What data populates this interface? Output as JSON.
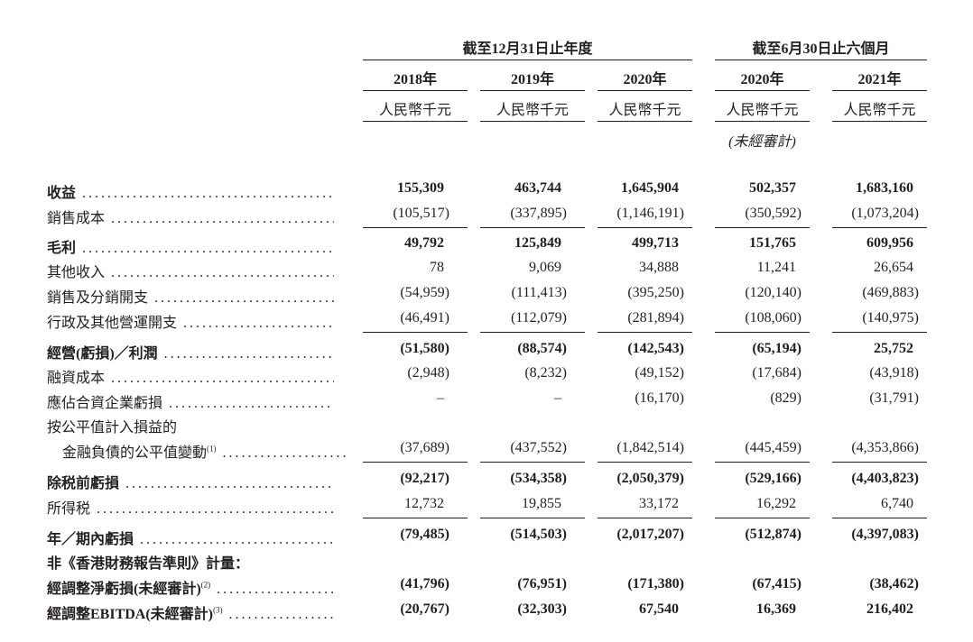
{
  "header": {
    "group_year": "截至12月31日止年度",
    "group_half": "截至6月30日止六個月",
    "columns": [
      {
        "year": "2018年",
        "unit": "人民幣千元"
      },
      {
        "year": "2019年",
        "unit": "人民幣千元"
      },
      {
        "year": "2020年",
        "unit": "人民幣千元"
      },
      {
        "year": "2020年",
        "unit": "人民幣千元",
        "note": "(未經審計)"
      },
      {
        "year": "2021年",
        "unit": "人民幣千元"
      }
    ]
  },
  "rows": [
    {
      "label": "收益",
      "bold": true,
      "values": [
        "155,309",
        "463,744",
        "1,645,904",
        "502,357",
        "1,683,160"
      ]
    },
    {
      "label": "銷售成本",
      "bold": false,
      "values": [
        "(105,517)",
        "(337,895)",
        "(1,146,191)",
        "(350,592)",
        "(1,073,204)"
      ],
      "rule_after": true
    },
    {
      "label": "毛利",
      "bold": true,
      "values": [
        "49,792",
        "125,849",
        "499,713",
        "151,765",
        "609,956"
      ]
    },
    {
      "label": "其他收入",
      "bold": false,
      "values": [
        "78",
        "9,069",
        "34,888",
        "11,241",
        "26,654"
      ]
    },
    {
      "label": "銷售及分銷開支",
      "bold": false,
      "values": [
        "(54,959)",
        "(111,413)",
        "(395,250)",
        "(120,140)",
        "(469,883)"
      ]
    },
    {
      "label": "行政及其他營運開支",
      "bold": false,
      "values": [
        "(46,491)",
        "(112,079)",
        "(281,894)",
        "(108,060)",
        "(140,975)"
      ],
      "rule_after": true
    },
    {
      "label": "經營(虧損)／利潤",
      "bold": true,
      "values": [
        "(51,580)",
        "(88,574)",
        "(142,543)",
        "(65,194)",
        "25,752"
      ]
    },
    {
      "label": "融資成本",
      "bold": false,
      "values": [
        "(2,948)",
        "(8,232)",
        "(49,152)",
        "(17,684)",
        "(43,918)"
      ]
    },
    {
      "label": "應佔合資企業虧損",
      "bold": false,
      "values": [
        "–",
        "–",
        "(16,170)",
        "(829)",
        "(31,791)"
      ]
    },
    {
      "label": "按公平值計入損益的",
      "bold": false,
      "nodots": true,
      "values": []
    },
    {
      "label": "金融負債的公平值變動",
      "sup": "(1)",
      "indent": true,
      "bold": false,
      "values": [
        "(37,689)",
        "(437,552)",
        "(1,842,514)",
        "(445,459)",
        "(4,353,866)"
      ],
      "rule_after": true
    },
    {
      "label": "除税前虧損",
      "bold": true,
      "values": [
        "(92,217)",
        "(534,358)",
        "(2,050,379)",
        "(529,166)",
        "(4,403,823)"
      ]
    },
    {
      "label": "所得税",
      "bold": false,
      "values": [
        "12,732",
        "19,855",
        "33,172",
        "16,292",
        "6,740"
      ],
      "rule_after": true
    },
    {
      "label": "年／期內虧損",
      "bold": true,
      "values": [
        "(79,485)",
        "(514,503)",
        "(2,017,207)",
        "(512,874)",
        "(4,397,083)"
      ]
    },
    {
      "label": "非《香港財務報告準則》計量：",
      "bold": true,
      "nodots": true,
      "values": []
    },
    {
      "label": "經調整淨虧損(未經審計)",
      "sup": "(2)",
      "bold": true,
      "values": [
        "(41,796)",
        "(76,951)",
        "(171,380)",
        "(67,415)",
        "(38,462)"
      ]
    },
    {
      "label": "經調整EBITDA(未經審計)",
      "sup": "(3)",
      "bold": true,
      "values": [
        "(20,767)",
        "(32,303)",
        "67,540",
        "16,369",
        "216,402"
      ]
    }
  ]
}
